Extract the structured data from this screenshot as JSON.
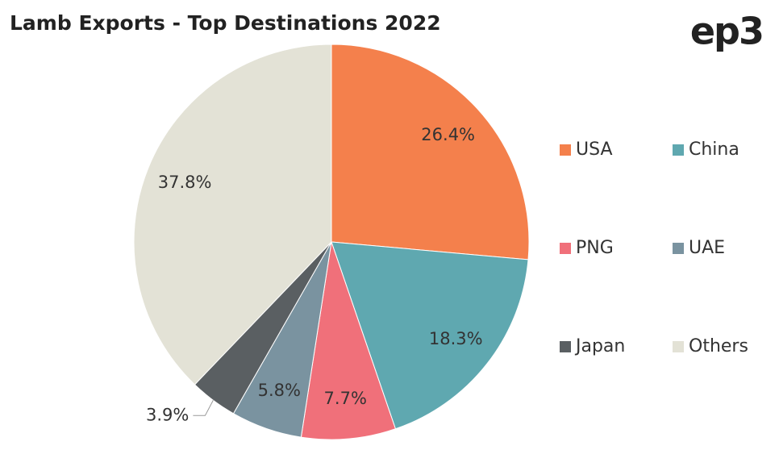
{
  "logo": "ep3",
  "chart_data": {
    "type": "pie",
    "title": "Lamb Exports - Top Destinations 2022",
    "categories": [
      "USA",
      "China",
      "PNG",
      "UAE",
      "Japan",
      "Others"
    ],
    "values": [
      26.4,
      18.3,
      7.7,
      5.8,
      3.9,
      37.8
    ],
    "value_labels": [
      "26.4%",
      "18.3%",
      "7.7%",
      "5.8%",
      "3.9%",
      "37.8%"
    ],
    "colors": [
      "#f4804c",
      "#5fa8b0",
      "#f0707a",
      "#7a93a0",
      "#5a5f62",
      "#e3e2d6"
    ],
    "legend": "right"
  }
}
